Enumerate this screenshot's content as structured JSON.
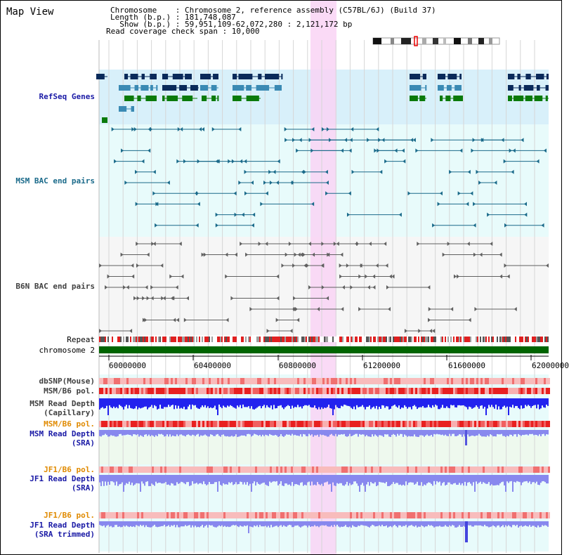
{
  "title": "Map View",
  "header": {
    "chromosome_line": "Chromosome    : Chromosome 2, reference assembly (C57BL/6J) (Build 37)",
    "length_line": "Length (b.p.) : 181,748,087",
    "show_line": "  Show (b.p.) : 59,951,109-62,072,280 : 2,121,172 bp",
    "coverage_line": "Read coverage check span : 10,000"
  },
  "tracks": {
    "refseq": "RefSeq Genes",
    "msm_bac": "MSM BAC end pairs",
    "b6n_bac": "B6N BAC end pairs",
    "repeat": "Repeat",
    "chromosome": "chromosome 2",
    "dbsnp": "dbSNP(Mouse)",
    "msm_b6_pol_1": "MSM/B6 pol.",
    "msm_depth_cap_1": "MSM Read Depth",
    "msm_depth_cap_2": "(Capillary)",
    "msm_b6_pol_2": "MSM/B6 pol.",
    "msm_depth_sra_1": "MSM Read Depth",
    "msm_depth_sra_2": "(SRA)",
    "jf1_b6_pol_1": "JF1/B6 pol.",
    "jf1_depth_sra_1": "JF1 Read Depth",
    "jf1_depth_sra_2": "(SRA)",
    "jf1_b6_pol_2": "JF1/B6 pol.",
    "jf1_depth_trim_1": "JF1 Read Depth",
    "jf1_depth_trim_2": "(SRA trimmed)"
  },
  "axis": {
    "ticks": [
      "60000000",
      "60400000",
      "60800000",
      "61200000",
      "61600000",
      "62000000"
    ]
  },
  "colors": {
    "refseq_bg": "#d8f0fa",
    "track_bg": "#e8fbfb",
    "highlight": "#f9d4f4",
    "chromosome": "#006400",
    "gene_dark": "#0a2a5a",
    "gene_mid": "#3a8ab4",
    "gene_green": "#0a7a0a",
    "msm_pair": "#1a6a8a",
    "b6n_pair": "#606060",
    "depth_blue": "#2222ee",
    "depth_light": "#8888ee"
  }
}
